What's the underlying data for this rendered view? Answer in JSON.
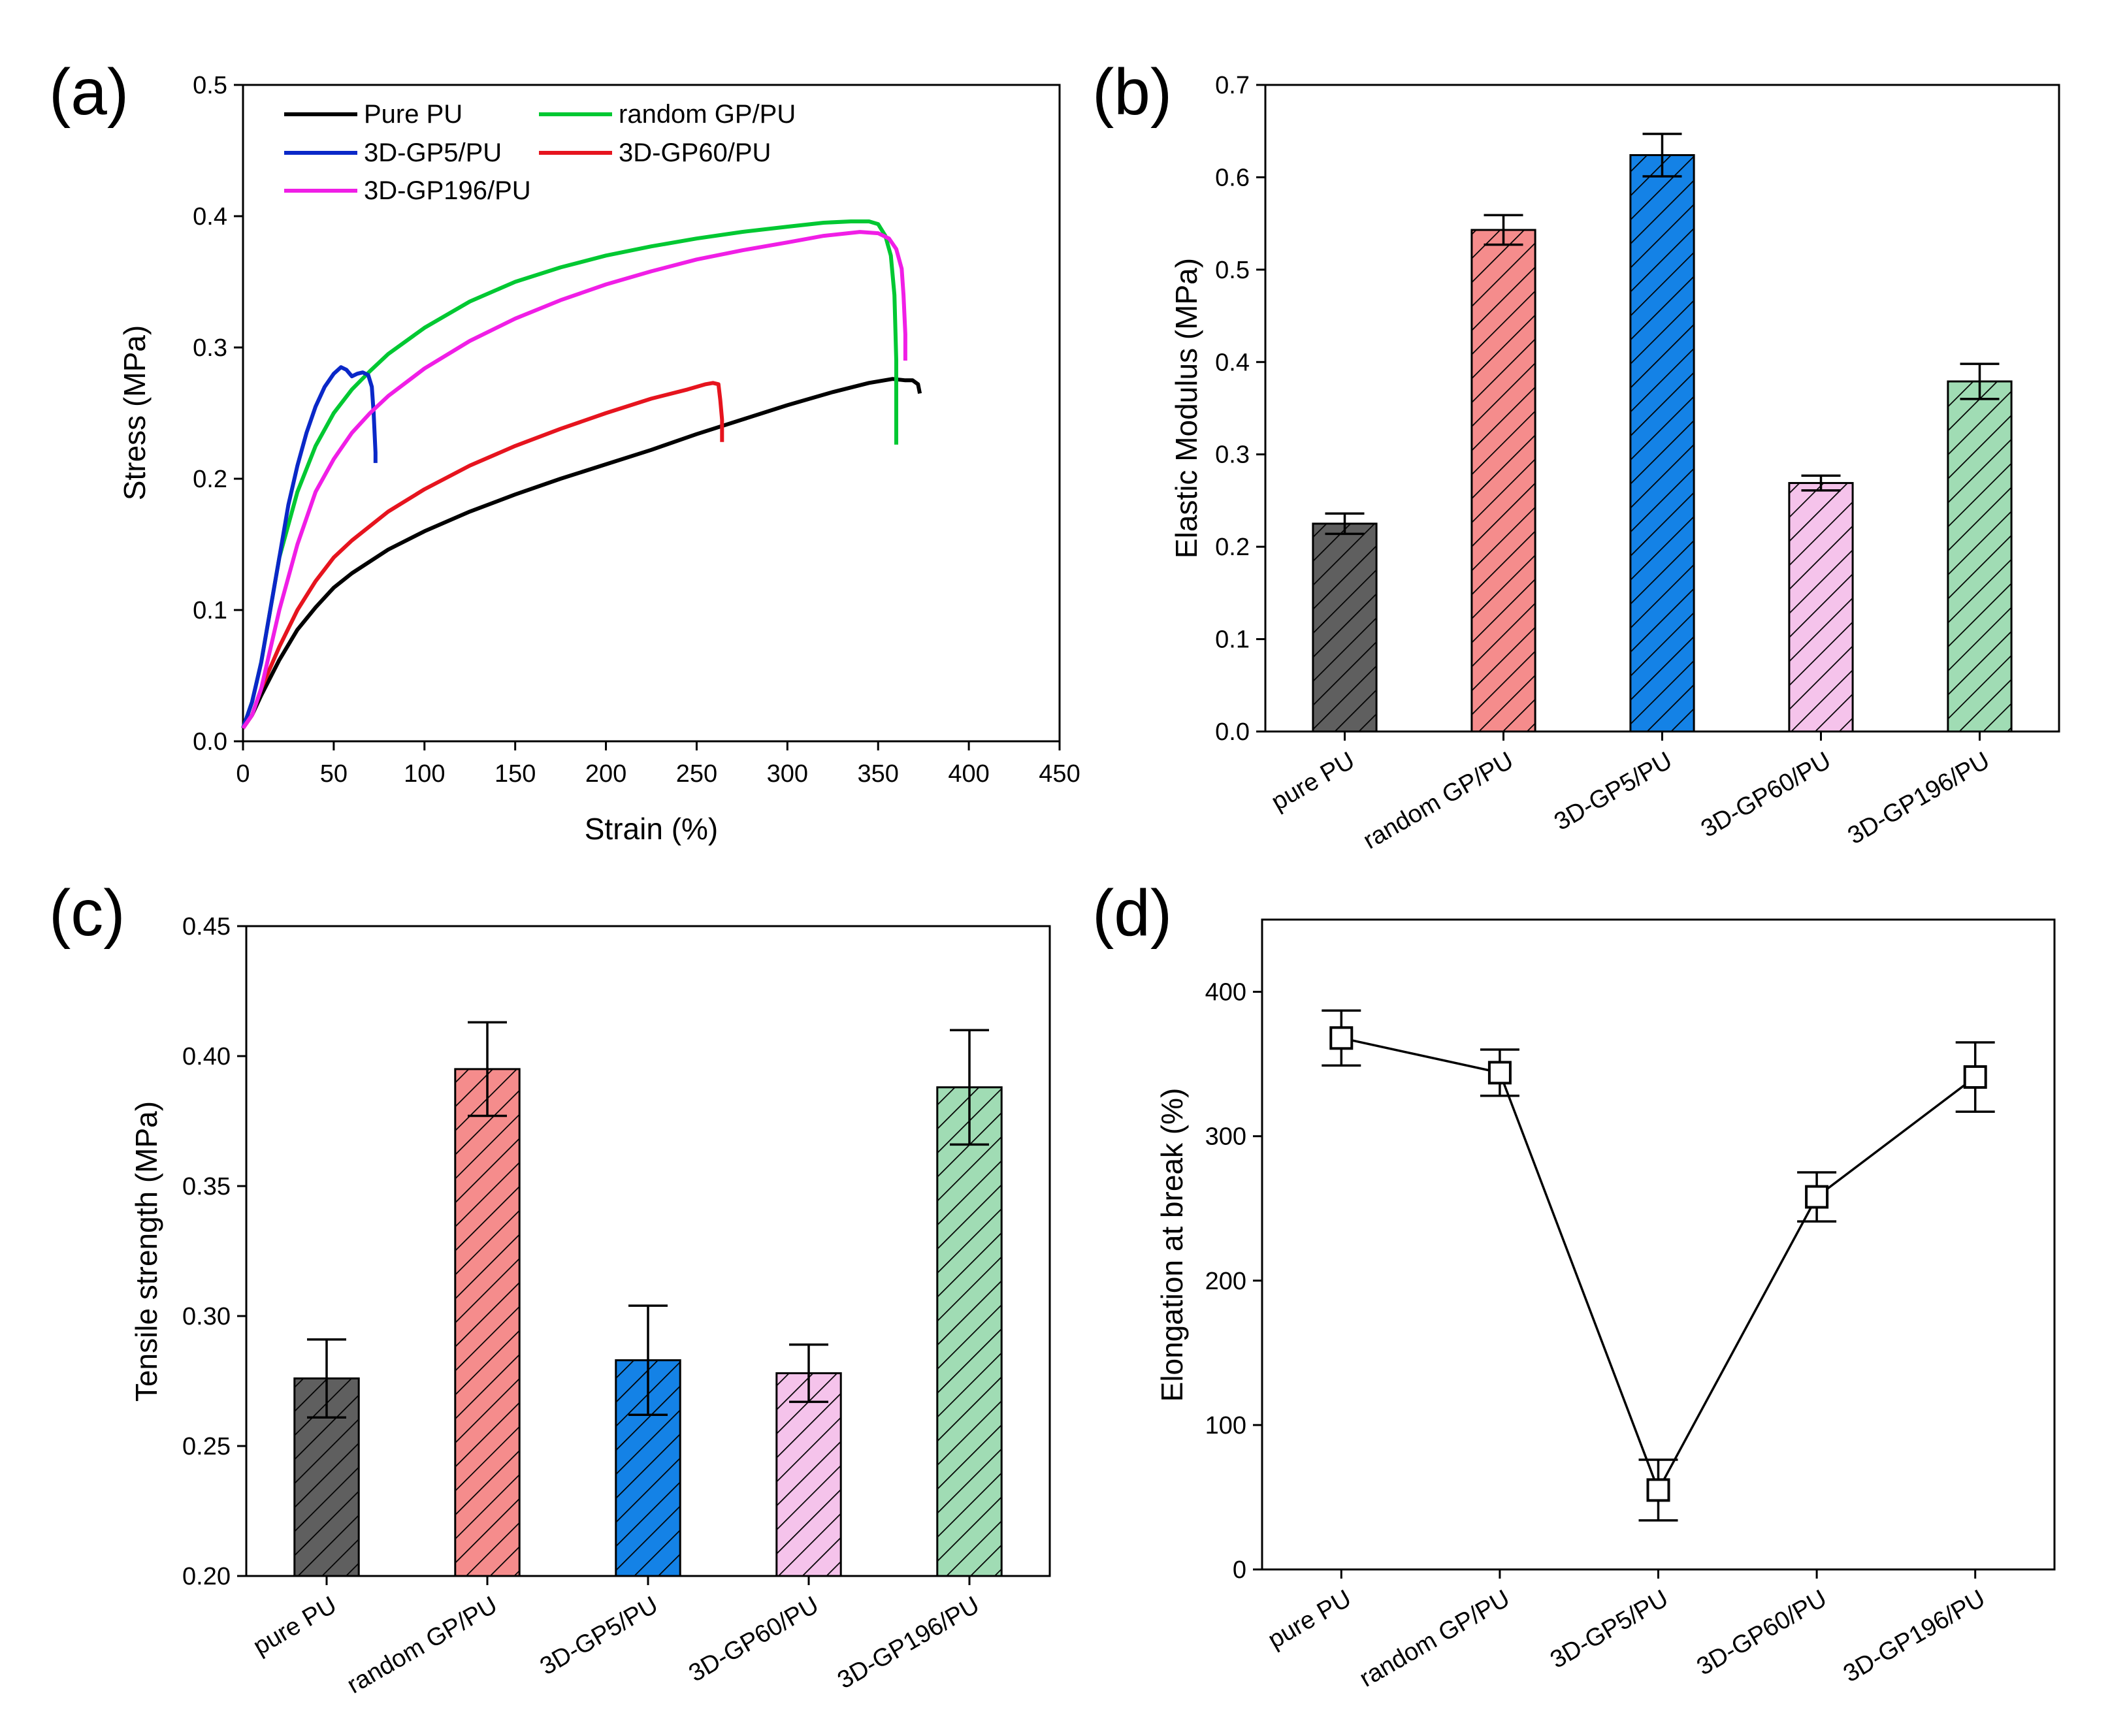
{
  "chart_data": [
    {
      "panel": "(a)",
      "type": "line",
      "xlabel": "Strain (%)",
      "ylabel": "Stress (MPa)",
      "xlim": [
        0,
        450
      ],
      "ylim": [
        0,
        0.5
      ],
      "xticks": [
        0,
        50,
        100,
        150,
        200,
        250,
        300,
        350,
        400,
        450
      ],
      "yticks": [
        0.0,
        0.1,
        0.2,
        0.3,
        0.4,
        0.5
      ],
      "legend_position": "top-left",
      "series": [
        {
          "name": "Pure PU",
          "color": "#000000",
          "points": [
            [
              0,
              0.01
            ],
            [
              5,
              0.02
            ],
            [
              10,
              0.035
            ],
            [
              20,
              0.062
            ],
            [
              30,
              0.085
            ],
            [
              40,
              0.102
            ],
            [
              50,
              0.117
            ],
            [
              60,
              0.128
            ],
            [
              80,
              0.146
            ],
            [
              100,
              0.16
            ],
            [
              125,
              0.175
            ],
            [
              150,
              0.188
            ],
            [
              175,
              0.2
            ],
            [
              200,
              0.211
            ],
            [
              225,
              0.222
            ],
            [
              250,
              0.234
            ],
            [
              275,
              0.245
            ],
            [
              300,
              0.256
            ],
            [
              325,
              0.266
            ],
            [
              345,
              0.273
            ],
            [
              358,
              0.276
            ],
            [
              365,
              0.275
            ],
            [
              369,
              0.275
            ],
            [
              372,
              0.272
            ],
            [
              373,
              0.265
            ]
          ]
        },
        {
          "name": "random GP/PU",
          "color": "#00c832",
          "points": [
            [
              0,
              0.01
            ],
            [
              5,
              0.03
            ],
            [
              10,
              0.06
            ],
            [
              15,
              0.1
            ],
            [
              20,
              0.14
            ],
            [
              30,
              0.19
            ],
            [
              40,
              0.225
            ],
            [
              50,
              0.25
            ],
            [
              60,
              0.268
            ],
            [
              70,
              0.282
            ],
            [
              80,
              0.295
            ],
            [
              100,
              0.315
            ],
            [
              125,
              0.335
            ],
            [
              150,
              0.35
            ],
            [
              175,
              0.361
            ],
            [
              200,
              0.37
            ],
            [
              225,
              0.377
            ],
            [
              250,
              0.383
            ],
            [
              275,
              0.388
            ],
            [
              300,
              0.392
            ],
            [
              320,
              0.395
            ],
            [
              335,
              0.396
            ],
            [
              345,
              0.396
            ],
            [
              350,
              0.394
            ],
            [
              354,
              0.385
            ],
            [
              357,
              0.37
            ],
            [
              359,
              0.34
            ],
            [
              360,
              0.29
            ],
            [
              360,
              0.226
            ]
          ]
        },
        {
          "name": "3D-GP5/PU",
          "color": "#0a28c8",
          "points": [
            [
              0,
              0.01
            ],
            [
              5,
              0.03
            ],
            [
              10,
              0.06
            ],
            [
              15,
              0.1
            ],
            [
              20,
              0.14
            ],
            [
              25,
              0.18
            ],
            [
              30,
              0.21
            ],
            [
              35,
              0.235
            ],
            [
              40,
              0.255
            ],
            [
              45,
              0.27
            ],
            [
              50,
              0.28
            ],
            [
              54,
              0.285
            ],
            [
              57,
              0.283
            ],
            [
              60,
              0.278
            ],
            [
              63,
              0.28
            ],
            [
              66,
              0.281
            ],
            [
              69,
              0.279
            ],
            [
              71,
              0.27
            ],
            [
              72,
              0.25
            ],
            [
              73,
              0.22
            ],
            [
              73,
              0.212
            ]
          ]
        },
        {
          "name": "3D-GP60/PU",
          "color": "#e6141e",
          "points": [
            [
              0,
              0.01
            ],
            [
              5,
              0.02
            ],
            [
              10,
              0.04
            ],
            [
              20,
              0.072
            ],
            [
              30,
              0.1
            ],
            [
              40,
              0.122
            ],
            [
              50,
              0.14
            ],
            [
              60,
              0.153
            ],
            [
              80,
              0.175
            ],
            [
              100,
              0.192
            ],
            [
              125,
              0.21
            ],
            [
              150,
              0.225
            ],
            [
              175,
              0.238
            ],
            [
              200,
              0.25
            ],
            [
              225,
              0.261
            ],
            [
              245,
              0.268
            ],
            [
              255,
              0.272
            ],
            [
              259,
              0.273
            ],
            [
              262,
              0.272
            ],
            [
              263,
              0.26
            ],
            [
              264,
              0.245
            ],
            [
              264,
              0.228
            ]
          ]
        },
        {
          "name": "3D-GP196/PU",
          "color": "#f01ee6",
          "points": [
            [
              0,
              0.01
            ],
            [
              5,
              0.02
            ],
            [
              10,
              0.04
            ],
            [
              15,
              0.07
            ],
            [
              20,
              0.1
            ],
            [
              30,
              0.15
            ],
            [
              40,
              0.19
            ],
            [
              50,
              0.215
            ],
            [
              60,
              0.235
            ],
            [
              70,
              0.25
            ],
            [
              80,
              0.263
            ],
            [
              100,
              0.284
            ],
            [
              125,
              0.305
            ],
            [
              150,
              0.322
            ],
            [
              175,
              0.336
            ],
            [
              200,
              0.348
            ],
            [
              225,
              0.358
            ],
            [
              250,
              0.367
            ],
            [
              275,
              0.374
            ],
            [
              300,
              0.38
            ],
            [
              320,
              0.385
            ],
            [
              340,
              0.388
            ],
            [
              350,
              0.387
            ],
            [
              356,
              0.383
            ],
            [
              360,
              0.375
            ],
            [
              363,
              0.36
            ],
            [
              364,
              0.34
            ],
            [
              365,
              0.31
            ],
            [
              365,
              0.29
            ]
          ]
        }
      ]
    },
    {
      "panel": "(b)",
      "type": "bar",
      "xlabel": "",
      "ylabel": "Elastic Modulus (MPa)",
      "ylim": [
        0,
        0.7
      ],
      "yticks": [
        0.0,
        0.1,
        0.2,
        0.3,
        0.4,
        0.5,
        0.6,
        0.7
      ],
      "categories": [
        "pure PU",
        "random GP/PU",
        "3D-GP5/PU",
        "3D-GP60/PU",
        "3D-GP196/PU"
      ],
      "values": [
        0.225,
        0.543,
        0.624,
        0.269,
        0.379
      ],
      "errors": [
        0.011,
        0.016,
        0.023,
        0.008,
        0.019
      ],
      "colors": [
        "#5f5f5f",
        "#f58c8c",
        "#1482e6",
        "#f5c3eb",
        "#a0dcb4"
      ]
    },
    {
      "panel": "(c)",
      "type": "bar",
      "xlabel": "",
      "ylabel": "Tensile strength (MPa)",
      "ylim": [
        0.2,
        0.45
      ],
      "yticks": [
        0.2,
        0.25,
        0.3,
        0.35,
        0.4,
        0.45
      ],
      "categories": [
        "pure PU",
        "random GP/PU",
        "3D-GP5/PU",
        "3D-GP60/PU",
        "3D-GP196/PU"
      ],
      "values": [
        0.276,
        0.395,
        0.283,
        0.278,
        0.388
      ],
      "errors": [
        0.015,
        0.018,
        0.021,
        0.011,
        0.022
      ],
      "colors": [
        "#5f5f5f",
        "#f58c8c",
        "#1482e6",
        "#f5c3eb",
        "#a0dcb4"
      ]
    },
    {
      "panel": "(d)",
      "type": "line",
      "xlabel": "",
      "ylabel": "Elongation at break (%)",
      "ylim": [
        0,
        450
      ],
      "yticks": [
        0,
        100,
        200,
        300,
        400
      ],
      "categories": [
        "pure PU",
        "random GP/PU",
        "3D-GP5/PU",
        "3D-GP60/PU",
        "3D-GP196/PU"
      ],
      "values": [
        368,
        344,
        55,
        258,
        341
      ],
      "errors": [
        19,
        16,
        21,
        17,
        24
      ],
      "marker": "open-square"
    }
  ]
}
